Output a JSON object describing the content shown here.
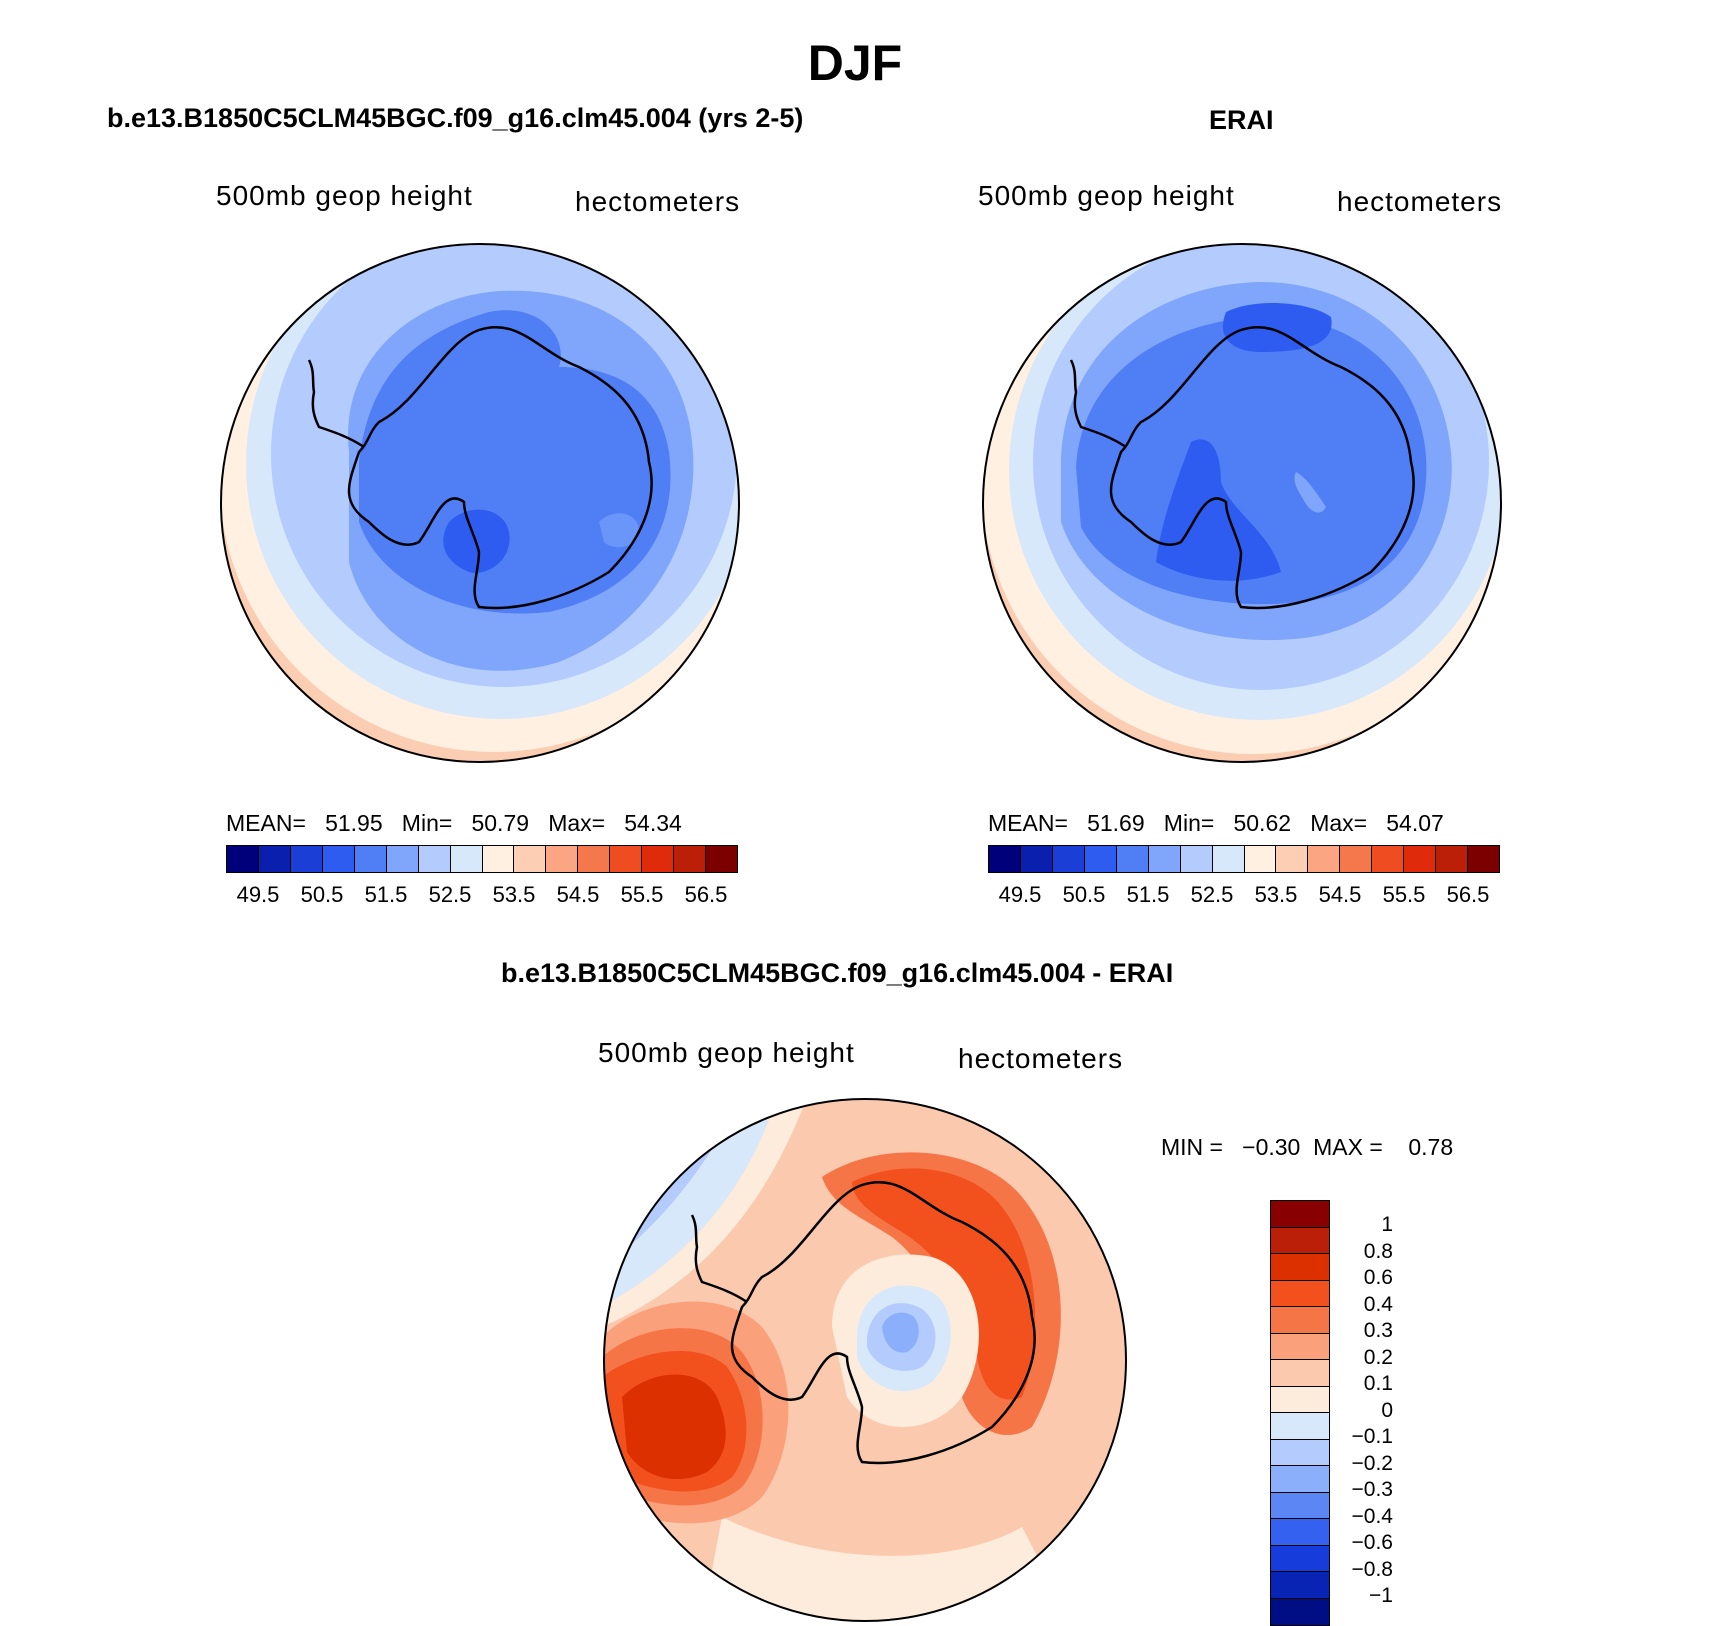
{
  "page": {
    "title": "DJF"
  },
  "colors": {
    "abs_scale": [
      "#00007a",
      "#0a1fae",
      "#1b3ed6",
      "#2e5cf0",
      "#4f7ef5",
      "#7fa6fb",
      "#b3ccfd",
      "#d8e8fb",
      "#fff0e2",
      "#fdcdb4",
      "#fba583",
      "#f5784d",
      "#f04c22",
      "#e02a0c",
      "#bb1f08",
      "#7d0000"
    ],
    "diff_scale_top_to_bottom": [
      "#880000",
      "#bb1f08",
      "#dd3000",
      "#f2511d",
      "#f67547",
      "#faa07b",
      "#fbc9ae",
      "#fdecdc",
      "#d8e8fb",
      "#b3ccfd",
      "#8caffb",
      "#5b86f4",
      "#3461ef",
      "#163cdc",
      "#0824b4",
      "#000e86"
    ]
  },
  "panels": [
    {
      "id": "model",
      "title": "b.e13.B1850C5CLM45BGC.f09_g16.clm45.004 (yrs 2-5)",
      "left_label": "500mb  geop  height",
      "right_label": "hectometers",
      "stats": {
        "mean_label": "MEAN=",
        "mean": "51.95",
        "min_label": "Min=",
        "min": "50.79",
        "max_label": "Max=",
        "max": "54.34"
      },
      "tick_labels": [
        "49.5",
        "50.5",
        "51.5",
        "52.5",
        "53.5",
        "54.5",
        "55.5",
        "56.5"
      ]
    },
    {
      "id": "obs",
      "title": "ERAI",
      "left_label": "500mb  geop  height",
      "right_label": "hectometers",
      "stats": {
        "mean_label": "MEAN=",
        "mean": "51.69",
        "min_label": "Min=",
        "min": "50.62",
        "max_label": "Max=",
        "max": "54.07"
      },
      "tick_labels": [
        "49.5",
        "50.5",
        "51.5",
        "52.5",
        "53.5",
        "54.5",
        "55.5",
        "56.5"
      ]
    },
    {
      "id": "diff",
      "title": "b.e13.B1850C5CLM45BGC.f09_g16.clm45.004 - ERAI",
      "left_label": "500mb  geop  height",
      "right_label": "hectometers",
      "minmax": {
        "min_label": "MIN =",
        "min": "−0.30",
        "max_label": "MAX =",
        "max": "0.78"
      },
      "tick_labels": [
        "1",
        "0.8",
        "0.6",
        "0.4",
        "0.3",
        "0.2",
        "0.1",
        "0",
        "−0.1",
        "−0.2",
        "−0.3",
        "−0.4",
        "−0.6",
        "−0.8",
        "−1"
      ]
    }
  ]
}
